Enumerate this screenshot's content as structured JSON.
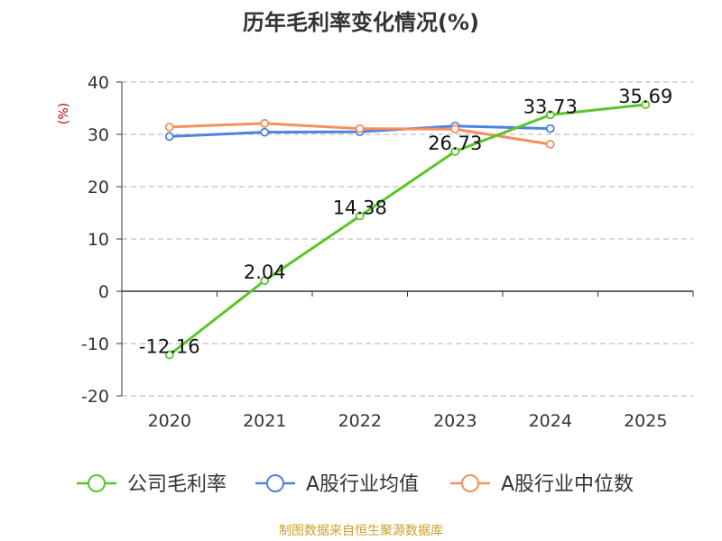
{
  "chart_data": {
    "type": "line",
    "title": "历年毛利率变化情况(%)",
    "ylabel": "(%)",
    "xlabel": "",
    "categories": [
      "2020",
      "2021",
      "2022",
      "2023",
      "2024",
      "2025"
    ],
    "ylim": [
      -20,
      40
    ],
    "yticks": [
      -20,
      -10,
      0,
      10,
      20,
      30,
      40
    ],
    "grid": true,
    "legend_position": "bottom",
    "series": [
      {
        "name": "公司毛利率",
        "color": "#5cc42b",
        "values": [
          -12.16,
          2.04,
          14.38,
          26.73,
          33.73,
          35.69
        ],
        "labels": [
          "-12.16",
          "2.04",
          "14.38",
          "26.73",
          "33.73",
          "35.69"
        ]
      },
      {
        "name": "A股行业均值",
        "color": "#4f81e0",
        "values": [
          29.6,
          30.4,
          30.5,
          31.6,
          31.1,
          null
        ]
      },
      {
        "name": "A股行业中位数",
        "color": "#f2905e",
        "values": [
          31.4,
          32.1,
          31.1,
          31.0,
          28.1,
          null
        ]
      }
    ]
  },
  "footer": "制图数据来自恒生聚源数据库"
}
